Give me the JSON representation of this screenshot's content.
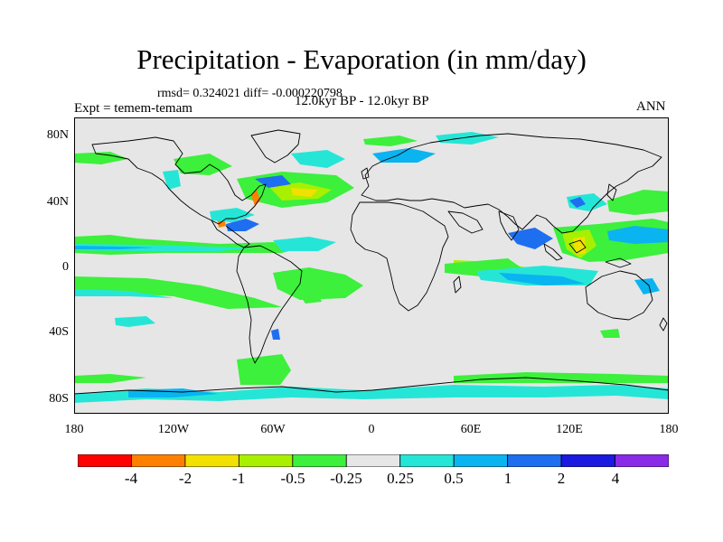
{
  "title": "Precipitation - Evaporation (in mm/day)",
  "stats": "rmsd= 0.324021 diff= -0.000220798",
  "expt": "Expt = temem-temam",
  "period": "12.0kyr BP - 12.0kyr BP",
  "season": "ANN",
  "lat_labels": [
    "80N",
    "40N",
    "0",
    "40S",
    "80S"
  ],
  "lon_labels": [
    "180",
    "120W",
    "60W",
    "0",
    "60E",
    "120E",
    "180"
  ],
  "colorbar": {
    "labels": [
      "-4",
      "-2",
      "-1",
      "-0.5",
      "-0.25",
      "0.25",
      "0.5",
      "1",
      "2",
      "4"
    ],
    "colors": [
      "#ff0000",
      "#ff8000",
      "#f2e000",
      "#a8f000",
      "#3cf03c",
      "#e6e6e6",
      "#25e6d6",
      "#0ab4f0",
      "#1e6ef0",
      "#1a1ae0",
      "#8a2be8"
    ]
  },
  "colors": {
    "ocean_bg": "#e6e6e6",
    "coast": "#000000"
  }
}
